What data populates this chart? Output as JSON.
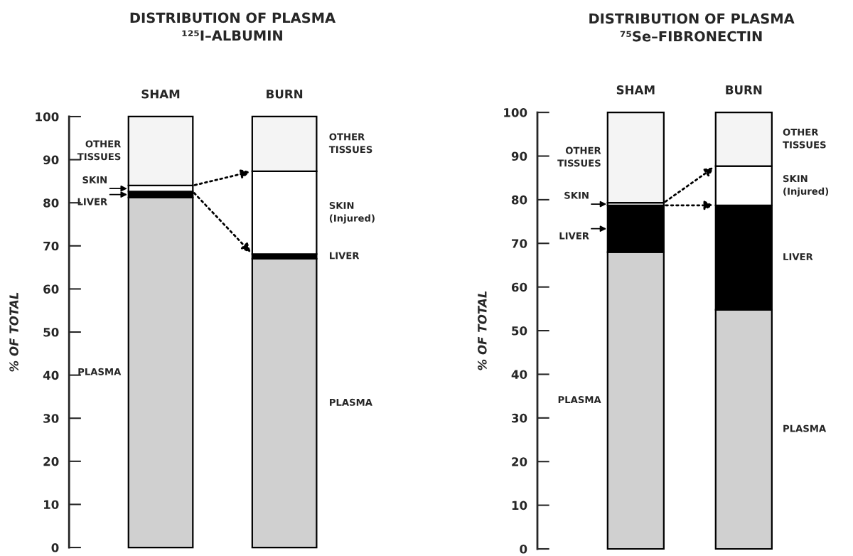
{
  "chart_data": [
    {
      "type": "bar",
      "stacked": true,
      "title": "DISTRIBUTION OF PLASMA",
      "subtitle": "¹²⁵I–ALBUMIN",
      "ylabel": "% OF TOTAL",
      "categories": [
        "SHAM",
        "BURN"
      ],
      "ylim": [
        0,
        100
      ],
      "yticks": [
        0,
        10,
        20,
        30,
        40,
        50,
        60,
        70,
        80,
        90,
        100
      ],
      "grid": false,
      "legend": false,
      "series": [
        {
          "color": "#d0d0d0",
          "values": [
            81.2,
            67
          ]
        },
        {
          "color": "#000000",
          "values": [
            1.4,
            1.1
          ]
        },
        {
          "color": "#ffffff",
          "values": [
            1.4,
            19.2
          ]
        },
        {
          "color": "#f4f4f4",
          "values": [
            16,
            12.7
          ]
        }
      ],
      "annotations": [
        "OTHER\nTISSUES",
        "SKIN",
        "LIVER",
        "PLASMA",
        "OTHER\nTISSUES",
        "SKIN\n(Injured)",
        "LIVER",
        "PLASMA"
      ]
    },
    {
      "type": "bar",
      "stacked": true,
      "title": "DISTRIBUTION OF PLASMA",
      "subtitle": "⁷⁵Se–FIBRONECTIN",
      "ylabel": "% OF TOTAL",
      "categories": [
        "SHAM",
        "BURN"
      ],
      "ylim": [
        0,
        100
      ],
      "yticks": [
        0,
        10,
        20,
        30,
        40,
        50,
        60,
        70,
        80,
        90,
        100
      ],
      "grid": false,
      "legend": false,
      "series": [
        {
          "color": "#d0d0d0",
          "values": [
            68,
            54.8
          ]
        },
        {
          "color": "#000000",
          "values": [
            10.7,
            23.9
          ]
        },
        {
          "color": "#ffffff",
          "values": [
            0.6,
            9.0
          ]
        },
        {
          "color": "#f4f4f4",
          "values": [
            20.7,
            12.3
          ]
        }
      ],
      "annotations": [
        "OTHER\nTISSUES",
        "SKIN",
        "LIVER",
        "PLASMA",
        "OTHER\nTISSUES",
        "SKIN\n(Injured)",
        "LIVER",
        "PLASMA"
      ]
    }
  ]
}
